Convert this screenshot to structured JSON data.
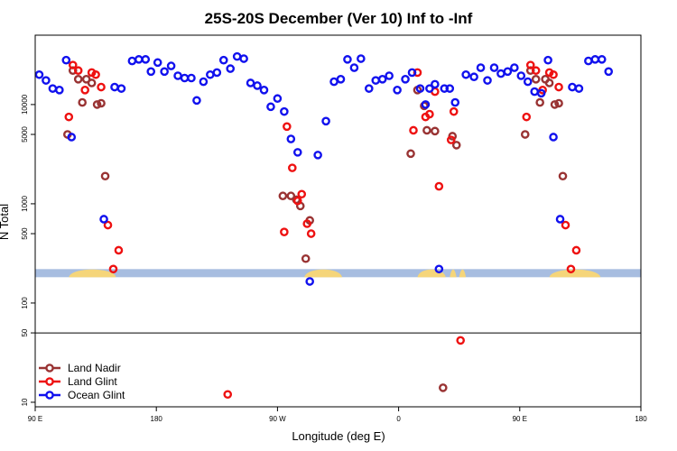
{
  "chart_data": {
    "type": "scatter",
    "title": "25S-20S December (Ver 10)   Inf to -Inf",
    "xlabel": "Longitude (deg E)",
    "ylabel": "N Total",
    "x_axis": {
      "range": [
        90,
        540
      ],
      "ticks": [
        {
          "value": 90,
          "label": "90 E"
        },
        {
          "value": 180,
          "label": "180"
        },
        {
          "value": 270,
          "label": "90 W"
        },
        {
          "value": 360,
          "label": "0"
        },
        {
          "value": 450,
          "label": "90 E"
        },
        {
          "value": 540,
          "label": "180"
        }
      ]
    },
    "y_axis": {
      "scale": "log",
      "range": [
        9,
        50000
      ],
      "ticks": [
        {
          "value": 10,
          "label": "10"
        },
        {
          "value": 50,
          "label": "50"
        },
        {
          "value": 100,
          "label": "100"
        },
        {
          "value": 500,
          "label": "500"
        },
        {
          "value": 1000,
          "label": "1000"
        },
        {
          "value": 5000,
          "label": "5000"
        },
        {
          "value": 10000,
          "label": "10000"
        }
      ],
      "reference_line": 50
    },
    "land_band": {
      "y_value": 200,
      "ocean_color": "#a7bde0",
      "land_color": "#f5d57a",
      "land_segments": [
        [
          115,
          150
        ],
        [
          290,
          318
        ],
        [
          374,
          395
        ],
        [
          398,
          403
        ],
        [
          405,
          410
        ],
        [
          472,
          510
        ]
      ]
    },
    "legend": {
      "position": "bottom-left"
    },
    "series": [
      {
        "name": "Land Nadir",
        "color": "#993333",
        "points": [
          [
            114,
            5000
          ],
          [
            118,
            22000
          ],
          [
            122,
            18000
          ],
          [
            125,
            10500
          ],
          [
            128,
            18000
          ],
          [
            132,
            16500
          ],
          [
            136,
            10000
          ],
          [
            139,
            10300
          ],
          [
            142,
            1900
          ],
          [
            274,
            1200
          ],
          [
            280,
            1200
          ],
          [
            284,
            1100
          ],
          [
            287,
            950
          ],
          [
            291,
            280
          ],
          [
            294,
            680
          ],
          [
            369,
            3200
          ],
          [
            374,
            14000
          ],
          [
            379,
            9700
          ],
          [
            381,
            5500
          ],
          [
            387,
            5400
          ],
          [
            393,
            14
          ],
          [
            400,
            4800
          ],
          [
            403,
            3900
          ],
          [
            454,
            5000
          ],
          [
            458,
            22000
          ],
          [
            462,
            18000
          ],
          [
            465,
            10500
          ],
          [
            469,
            18000
          ],
          [
            472,
            16500
          ],
          [
            476,
            10000
          ],
          [
            479,
            10300
          ],
          [
            482,
            1900
          ]
        ]
      },
      {
        "name": "Land Glint",
        "color": "#ee1111",
        "points": [
          [
            115,
            7500
          ],
          [
            118,
            25000
          ],
          [
            122,
            22000
          ],
          [
            127,
            14000
          ],
          [
            132,
            21000
          ],
          [
            135,
            20000
          ],
          [
            139,
            15000
          ],
          [
            144,
            610
          ],
          [
            148,
            220
          ],
          [
            152,
            340
          ],
          [
            233,
            12
          ],
          [
            275,
            520
          ],
          [
            277,
            6000
          ],
          [
            281,
            2300
          ],
          [
            285,
            1070
          ],
          [
            288,
            1250
          ],
          [
            292,
            630
          ],
          [
            295,
            500
          ],
          [
            371,
            5500
          ],
          [
            374,
            21000
          ],
          [
            380,
            7500
          ],
          [
            383,
            8000
          ],
          [
            387,
            13500
          ],
          [
            390,
            1500
          ],
          [
            399,
            4400
          ],
          [
            401,
            8500
          ],
          [
            406,
            42
          ],
          [
            455,
            7500
          ],
          [
            458,
            25000
          ],
          [
            462,
            22000
          ],
          [
            467,
            14000
          ],
          [
            472,
            21000
          ],
          [
            475,
            20000
          ],
          [
            479,
            15000
          ],
          [
            484,
            610
          ],
          [
            488,
            220
          ],
          [
            492,
            340
          ]
        ]
      },
      {
        "name": "Ocean Glint",
        "color": "#1111ee",
        "points": [
          [
            93,
            20000
          ],
          [
            98,
            17500
          ],
          [
            103,
            14500
          ],
          [
            108,
            14000
          ],
          [
            113,
            28000
          ],
          [
            117,
            4700
          ],
          [
            141,
            700
          ],
          [
            149,
            15000
          ],
          [
            154,
            14500
          ],
          [
            162,
            27500
          ],
          [
            167,
            28500
          ],
          [
            172,
            28500
          ],
          [
            176,
            21500
          ],
          [
            181,
            26500
          ],
          [
            186,
            21500
          ],
          [
            191,
            24500
          ],
          [
            196,
            19500
          ],
          [
            201,
            18500
          ],
          [
            206,
            18500
          ],
          [
            210,
            11000
          ],
          [
            215,
            17000
          ],
          [
            220,
            20000
          ],
          [
            225,
            21000
          ],
          [
            230,
            28000
          ],
          [
            235,
            23000
          ],
          [
            240,
            30500
          ],
          [
            245,
            29000
          ],
          [
            250,
            16500
          ],
          [
            255,
            15500
          ],
          [
            260,
            14000
          ],
          [
            265,
            9500
          ],
          [
            270,
            11500
          ],
          [
            275,
            8500
          ],
          [
            280,
            4500
          ],
          [
            285,
            3300
          ],
          [
            294,
            165
          ],
          [
            300,
            3100
          ],
          [
            306,
            6800
          ],
          [
            312,
            17000
          ],
          [
            317,
            18000
          ],
          [
            322,
            28500
          ],
          [
            327,
            23500
          ],
          [
            332,
            29000
          ],
          [
            338,
            14500
          ],
          [
            343,
            17500
          ],
          [
            348,
            18000
          ],
          [
            353,
            19500
          ],
          [
            359,
            14000
          ],
          [
            365,
            18000
          ],
          [
            370,
            21000
          ],
          [
            376,
            14500
          ],
          [
            380,
            10000
          ],
          [
            383,
            14500
          ],
          [
            387,
            16000
          ],
          [
            390,
            220
          ],
          [
            394,
            14500
          ],
          [
            398,
            14500
          ],
          [
            402,
            10500
          ],
          [
            410,
            20000
          ],
          [
            416,
            19000
          ],
          [
            421,
            23500
          ],
          [
            426,
            17500
          ],
          [
            431,
            23500
          ],
          [
            436,
            20500
          ],
          [
            441,
            21500
          ],
          [
            446,
            23500
          ],
          [
            451,
            19500
          ],
          [
            456,
            17000
          ],
          [
            461,
            13500
          ],
          [
            466,
            13000
          ],
          [
            471,
            28000
          ],
          [
            475,
            4700
          ],
          [
            480,
            700
          ],
          [
            489,
            15000
          ],
          [
            494,
            14500
          ],
          [
            501,
            27500
          ],
          [
            506,
            28500
          ],
          [
            511,
            28500
          ],
          [
            516,
            21500
          ]
        ]
      }
    ]
  }
}
